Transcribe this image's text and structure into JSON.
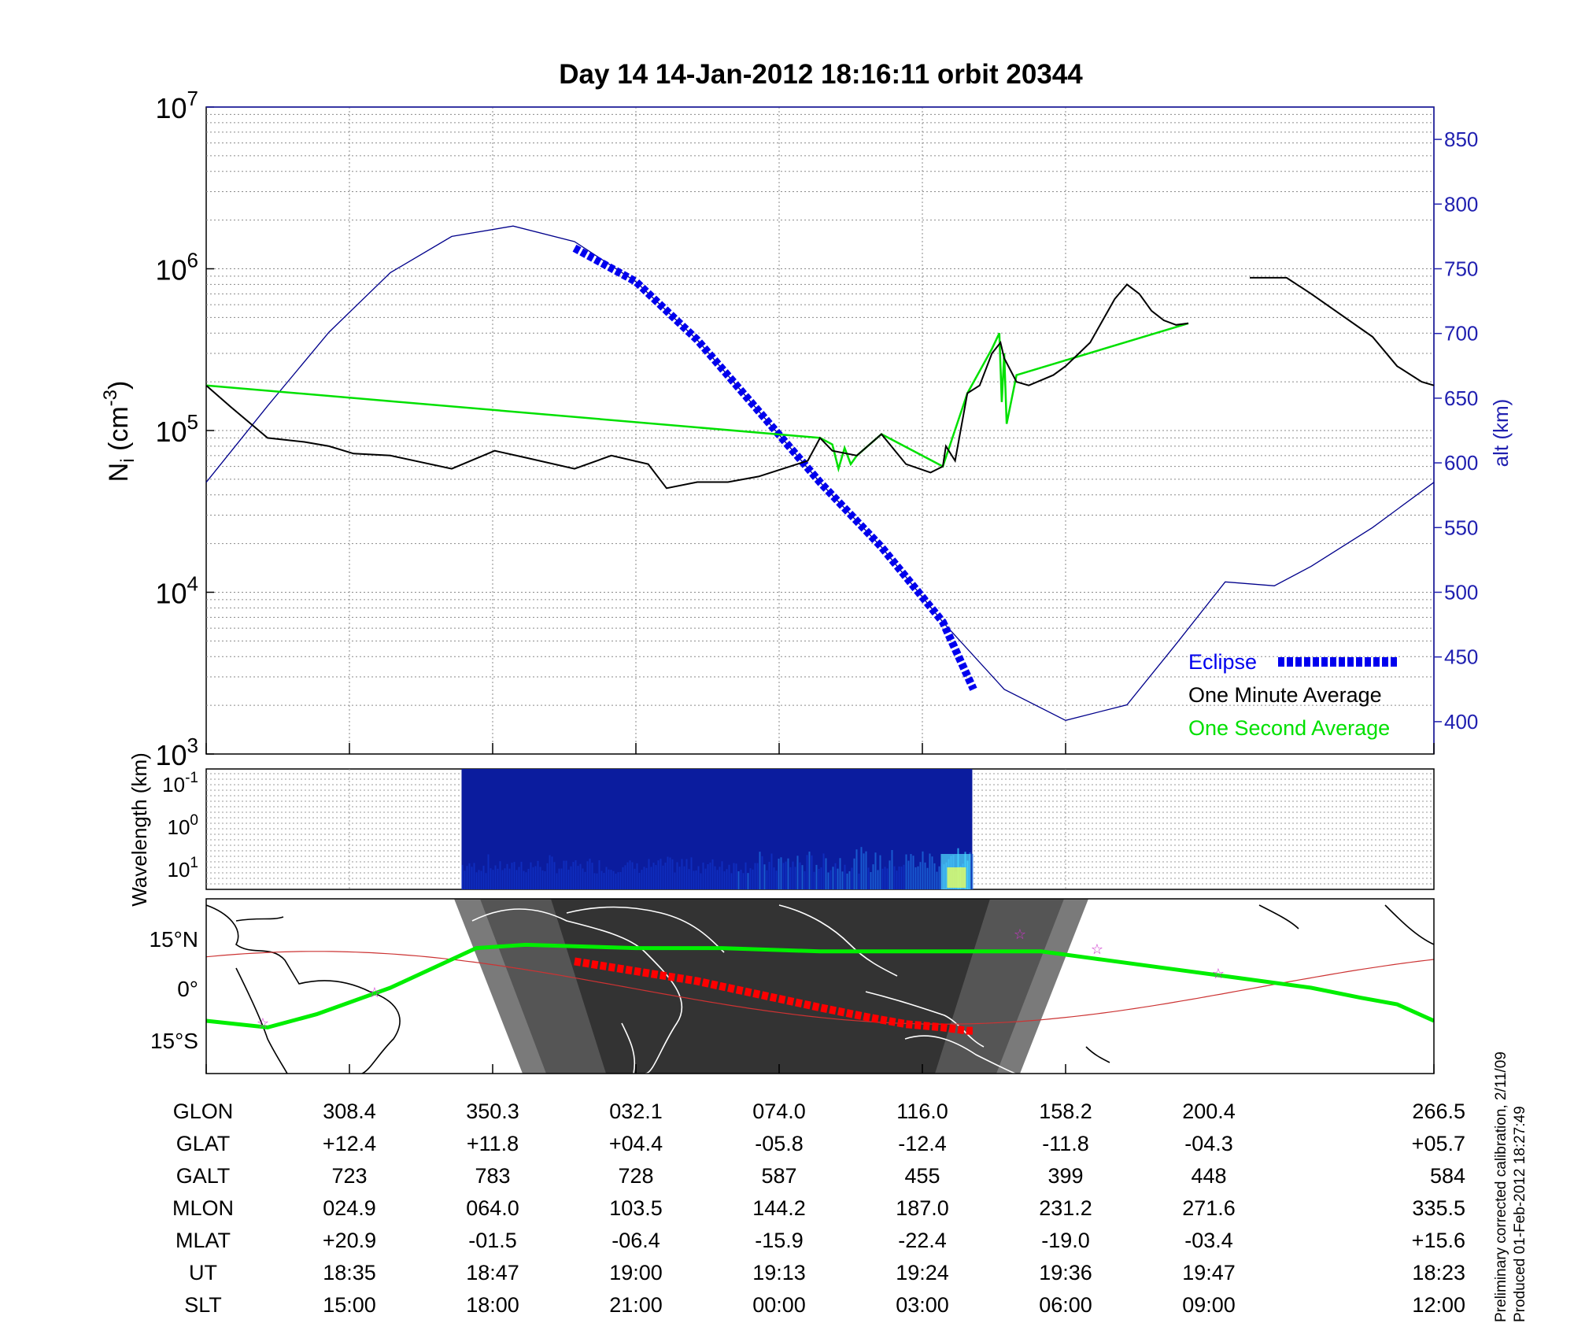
{
  "title": "Day 14  14-Jan-2012 18:16:11   orbit 20344",
  "footer": {
    "line1": "Preliminary corrected calibration, 2/11/09",
    "line2": "Produced 01-Feb-2012 18:27:49"
  },
  "colors": {
    "one_minute": "#000000",
    "one_second": "#00e000",
    "eclipse": "#0000ee",
    "altitude": "#00008b",
    "alt_axis": "#2020b0",
    "map_track": "#00ee00",
    "map_eclipse": "#ff0000",
    "map_orbit": "#cc3333",
    "star": "#cc33cc"
  },
  "chart_data": [
    {
      "type": "line",
      "title": "Day 14  14-Jan-2012 18:16:11   orbit 20344",
      "ylabel_left": "N_i (cm^-3)",
      "ylabel_right": "alt (km)",
      "yscale_left": "log",
      "ylim_left": [
        1000,
        10000000
      ],
      "ytick_labels_left": [
        "10^3",
        "10^4",
        "10^5",
        "10^6",
        "10^7"
      ],
      "ylim_right": [
        375,
        875
      ],
      "ytick_labels_right": [
        "400",
        "450",
        "500",
        "550",
        "600",
        "650",
        "700",
        "750",
        "800",
        "850"
      ],
      "x_tick_labels_SLT": [
        "15:00",
        "18:00",
        "21:00",
        "00:00",
        "03:00",
        "06:00",
        "09:00",
        "12:00"
      ],
      "x_note": "x values are the fraction of the orbit plot width (0 = left axis, 1 = right axis)",
      "xlim": [
        0,
        1
      ],
      "grid": true,
      "legend": {
        "position": "bottom-right",
        "entries": [
          "Eclipse",
          "One Minute Average",
          "One Second Average"
        ]
      },
      "series": [
        {
          "name": "One Minute Average",
          "unit": "cm^-3",
          "x": [
            0,
            0.02,
            0.05,
            0.08,
            0.1,
            0.12,
            0.15,
            0.2,
            0.235,
            0.26,
            0.3,
            0.33,
            0.36,
            0.375,
            0.4,
            0.425,
            0.45,
            0.49,
            0.5,
            0.51,
            0.53,
            0.55,
            0.57,
            0.59,
            0.6,
            0.6025,
            0.61,
            0.62,
            0.63,
            0.64,
            0.647,
            0.65,
            0.66,
            0.67,
            0.69,
            0.7,
            0.72,
            0.74,
            0.75,
            0.76,
            0.77,
            0.78,
            0.79,
            0.8,
            0.83,
            0.85,
            0.88,
            0.9,
            0.95,
            0.97,
            0.99,
            1.0
          ],
          "y": [
            190000,
            140000,
            90000,
            85000,
            80000,
            72000,
            70000,
            58000,
            75000,
            68000,
            58000,
            70000,
            62000,
            44000,
            48000,
            48000,
            52000,
            65000,
            90000,
            75000,
            70000,
            95000,
            62000,
            55000,
            60000,
            80000,
            65000,
            170000,
            190000,
            300000,
            350000,
            280000,
            200000,
            190000,
            220000,
            250000,
            350000,
            650000,
            800000,
            700000,
            550000,
            480000,
            450000,
            460000,
            null,
            880000,
            880000,
            700000,
            380000,
            250000,
            200000,
            190000
          ]
        },
        {
          "name": "One Second Average",
          "unit": "cm^-3",
          "x": [
            0,
            0.5,
            0.51,
            0.515,
            0.52,
            0.525,
            0.53,
            0.55,
            0.6,
            0.62,
            0.64,
            0.646,
            0.648,
            0.65,
            0.652,
            0.66,
            0.8
          ],
          "y": [
            190000,
            90000,
            82000,
            58000,
            78000,
            62000,
            70000,
            95000,
            60000,
            170000,
            320000,
            400000,
            150000,
            300000,
            110000,
            220000,
            460000
          ]
        },
        {
          "name": "Altitude",
          "unit": "km",
          "x": [
            0,
            0.05,
            0.1,
            0.15,
            0.2,
            0.25,
            0.3,
            0.35,
            0.4,
            0.45,
            0.5,
            0.55,
            0.6,
            0.65,
            0.7,
            0.75,
            0.79,
            0.83,
            0.87,
            0.9,
            0.95,
            1.0
          ],
          "y": [
            585,
            644,
            701,
            747,
            775,
            783,
            771,
            740,
            695,
            640,
            585,
            535,
            477,
            425,
            401,
            413,
            460,
            508,
            505,
            520,
            550,
            585
          ]
        },
        {
          "name": "Eclipse",
          "unit": "km",
          "x": [
            0.3,
            0.35,
            0.4,
            0.45,
            0.5,
            0.55,
            0.6,
            0.625
          ],
          "y": [
            766,
            740,
            695,
            640,
            585,
            535,
            477,
            425
          ]
        }
      ]
    },
    {
      "type": "heatmap",
      "ylabel": "Wavelength (km)",
      "ytick_labels": [
        "10^-1",
        "10^0",
        "10^1"
      ],
      "x_extent": [
        0.208,
        0.624
      ],
      "description_values": "spectrogram of density irregularities over the eclipsed portion of the orbit"
    },
    {
      "type": "scatter",
      "map_latitude_labels": [
        "15°N",
        "0°",
        "15°S"
      ],
      "track_latitude_deg": [
        -10,
        -12,
        -8,
        0,
        12,
        13,
        12,
        12,
        11,
        11,
        11,
        11,
        11,
        9,
        6,
        3,
        0,
        -3,
        -5,
        -10
      ],
      "track_x_fraction": [
        0,
        0.05,
        0.09,
        0.15,
        0.22,
        0.26,
        0.35,
        0.42,
        0.5,
        0.55,
        0.6,
        0.64,
        0.68,
        0.72,
        0.78,
        0.84,
        0.9,
        0.94,
        0.97,
        1.0
      ],
      "eclipse_track_latitude_deg": [
        8,
        5,
        2,
        -2,
        -6,
        -9,
        -11,
        -12,
        -13,
        -13
      ],
      "eclipse_track_x_fraction": [
        0.3,
        0.35,
        0.4,
        0.45,
        0.5,
        0.54,
        0.57,
        0.6,
        0.62,
        0.625
      ]
    },
    {
      "type": "table",
      "rows": [
        {
          "label": "GLON",
          "values": [
            "308.4",
            "350.3",
            "032.1",
            "074.0",
            "116.0",
            "158.2",
            "200.4",
            "266.5"
          ]
        },
        {
          "label": "GLAT",
          "values": [
            "+12.4",
            "+11.8",
            "+04.4",
            "-05.8",
            "-12.4",
            "-11.8",
            "-04.3",
            "+05.7"
          ]
        },
        {
          "label": "GALT",
          "values": [
            "723",
            "783",
            "728",
            "587",
            "455",
            "399",
            "448",
            "584"
          ]
        },
        {
          "label": "MLON",
          "values": [
            "024.9",
            "064.0",
            "103.5",
            "144.2",
            "187.0",
            "231.2",
            "271.6",
            "335.5"
          ]
        },
        {
          "label": "MLAT",
          "values": [
            "+20.9",
            "-01.5",
            "-06.4",
            "-15.9",
            "-22.4",
            "-19.0",
            "-03.4",
            "+15.6"
          ]
        },
        {
          "label": "UT",
          "values": [
            "18:35",
            "18:47",
            "19:00",
            "19:13",
            "19:24",
            "19:36",
            "19:47",
            "18:23"
          ]
        },
        {
          "label": "SLT",
          "values": [
            "15:00",
            "18:00",
            "21:00",
            "00:00",
            "03:00",
            "06:00",
            "09:00",
            "12:00"
          ]
        }
      ]
    }
  ]
}
